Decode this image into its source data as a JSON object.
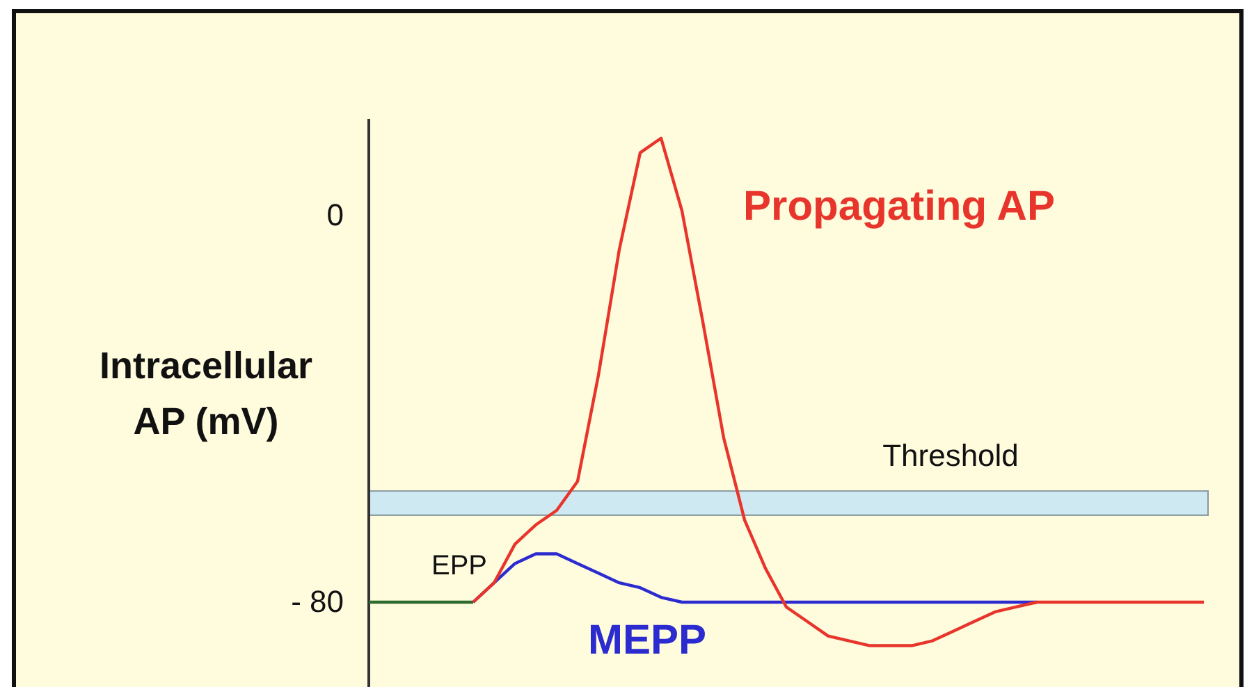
{
  "chart_data": {
    "type": "line",
    "ylabel": "Intracellular AP (mV)",
    "categories": [
      null,
      null,
      null,
      null,
      null,
      null,
      null,
      null,
      null,
      null,
      null,
      null,
      null,
      null,
      null,
      null,
      null,
      null,
      null,
      null,
      null,
      null,
      null,
      null,
      null,
      null,
      null,
      null,
      null,
      null,
      null,
      null,
      null,
      null,
      null,
      null,
      null,
      null,
      null,
      null,
      null
    ],
    "series": [
      {
        "color": "#2e6b2e",
        "values": [
          -80,
          -80,
          -80,
          -80,
          -80,
          -80,
          null,
          null,
          null,
          null,
          null,
          null,
          null,
          null,
          null,
          null,
          null,
          null,
          null,
          null,
          null,
          null,
          null,
          null,
          null,
          null,
          null,
          null,
          null,
          null,
          null,
          null,
          null,
          null,
          null,
          null,
          null,
          null,
          null,
          null,
          null
        ]
      },
      {
        "name": "MEPP",
        "color": "#2b2bd0",
        "values": [
          null,
          null,
          null,
          null,
          null,
          -80,
          -76,
          -72,
          -70,
          -70,
          -72,
          -74,
          -76,
          -77,
          -79,
          -80,
          -80,
          -80,
          -80,
          -80,
          -80,
          -80,
          -80,
          -80,
          -80,
          -80,
          -80,
          -80,
          -80,
          -80,
          -80,
          -80,
          -80,
          null,
          null,
          null,
          null,
          null,
          null,
          null,
          null
        ]
      },
      {
        "name": "Propagating AP",
        "color": "#e8352c",
        "values": [
          null,
          null,
          null,
          null,
          null,
          -80,
          -76,
          -68,
          -64,
          -61,
          -55,
          -33,
          -7,
          13,
          16,
          1,
          -22,
          -46,
          -63,
          -73,
          -81,
          -84,
          -87,
          -88,
          -89,
          -89,
          -89,
          -88,
          -86,
          -84,
          -82,
          -81,
          -80,
          -80,
          -80,
          -80,
          -80,
          -80,
          -80,
          -80,
          -80
        ]
      }
    ],
    "ylim": [
      -98,
      20
    ],
    "yticks": [
      0,
      {
        "value": -80,
        "label": "- 80"
      }
    ],
    "bands": [
      {
        "axis": "y",
        "from": -62,
        "to": -57,
        "label": "Threshold",
        "color": "#cfe9f2"
      }
    ],
    "annotations": [
      "EPP"
    ],
    "grid": false,
    "legend": false,
    "marker": "none",
    "line_style": "solid"
  }
}
